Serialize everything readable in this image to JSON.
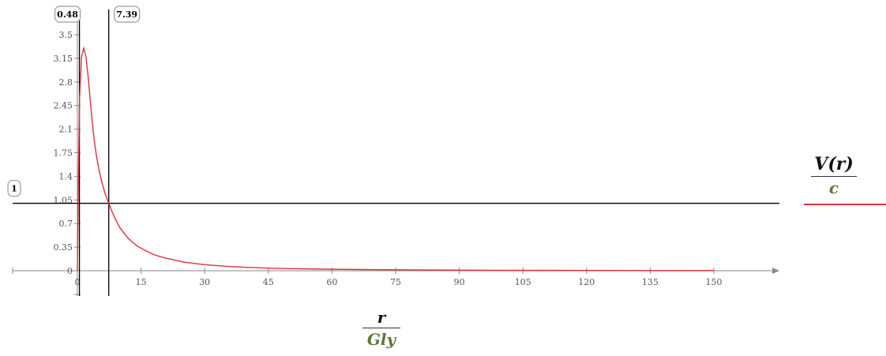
{
  "chart_data": {
    "type": "line",
    "xlabel": {
      "numerator": "r",
      "denominator": "Gly"
    },
    "ylabel": {
      "numerator": "V(r)",
      "denominator": "c"
    },
    "xlim": [
      -15,
      165
    ],
    "ylim": [
      -0.35,
      3.75
    ],
    "xticks": [
      "0",
      "15",
      "30",
      "45",
      "60",
      "75",
      "90",
      "105",
      "120",
      "135",
      "150"
    ],
    "yticks": [
      "0",
      "0.35",
      "0.7",
      "1.05",
      "1.4",
      "1.75",
      "2.1",
      "2.45",
      "2.8",
      "3.15",
      "3.5"
    ],
    "grid": false,
    "legend": "right",
    "series": [
      {
        "color": "#e03040",
        "x": [
          0,
          0.2,
          0.5,
          1,
          1.5,
          2,
          2.5,
          3,
          3.5,
          4,
          4.5,
          5,
          5.5,
          6,
          6.5,
          7,
          7.39,
          8,
          9,
          10,
          12,
          14,
          16,
          18,
          20,
          25,
          30,
          35,
          40,
          45,
          50,
          60,
          70,
          80,
          90,
          100,
          110,
          120,
          130,
          140,
          150
        ],
        "y": [
          0,
          1.2,
          2.55,
          3.18,
          3.3,
          3.18,
          2.9,
          2.55,
          2.2,
          1.92,
          1.7,
          1.53,
          1.38,
          1.26,
          1.15,
          1.06,
          1.0,
          0.9,
          0.76,
          0.64,
          0.48,
          0.37,
          0.3,
          0.24,
          0.2,
          0.13,
          0.09,
          0.066,
          0.05,
          0.039,
          0.032,
          0.022,
          0.016,
          0.012,
          0.009,
          0.007,
          0.006,
          0.005,
          0.004,
          0.003,
          0.003
        ]
      }
    ],
    "markers": {
      "vertical": [
        {
          "value": 0.48,
          "label": "0.48"
        },
        {
          "value": 7.39,
          "label": "7.39"
        }
      ],
      "horizontal": [
        {
          "value": 1,
          "label": "1"
        }
      ]
    }
  }
}
